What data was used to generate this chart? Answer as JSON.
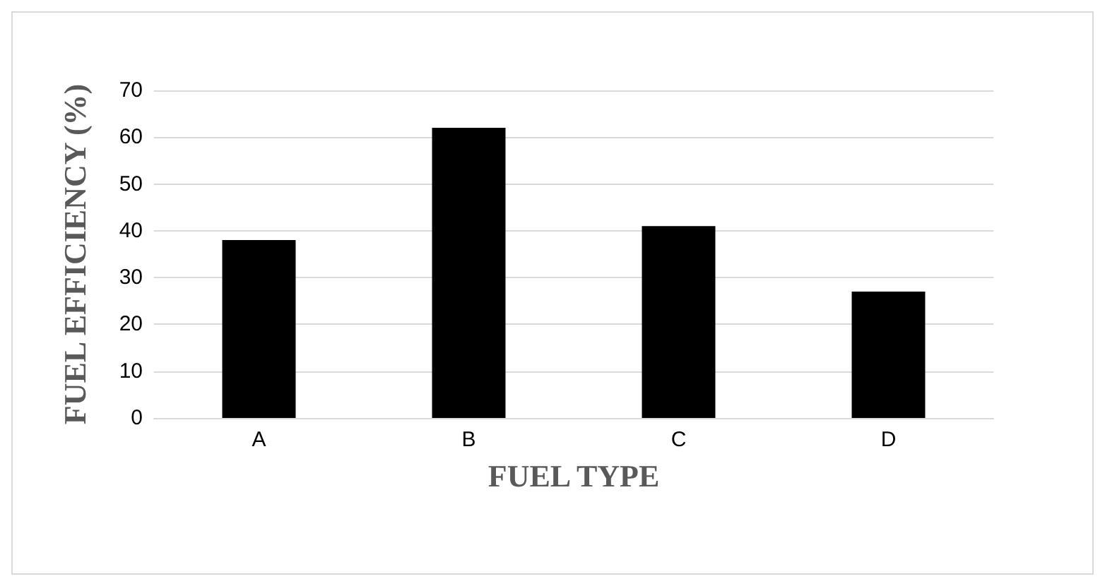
{
  "chart_data": {
    "type": "bar",
    "xlabel": "FUEL TYPE",
    "ylabel": "FUEL EFFICIENCY (%)",
    "categories": [
      "A",
      "B",
      "C",
      "D"
    ],
    "values": [
      38,
      62,
      41,
      27
    ],
    "color": "#000000",
    "ylim": [
      0,
      70
    ],
    "yticks": [
      0,
      10,
      20,
      30,
      40,
      50,
      60,
      70
    ],
    "grid": "y"
  }
}
